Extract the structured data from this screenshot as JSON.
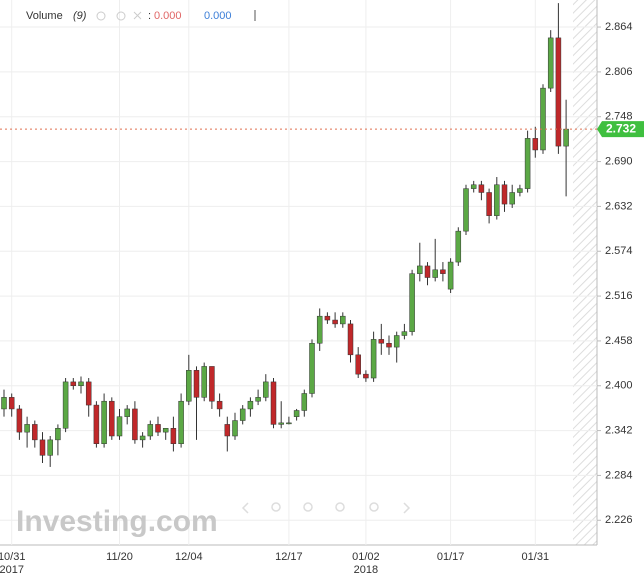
{
  "chart_data": {
    "type": "candlestick",
    "indicator": {
      "name": "Volume",
      "period": "(9)",
      "separator": ":",
      "value_1": {
        "value": 0,
        "label": "0.000"
      },
      "value_2": {
        "value": 0,
        "label": "0.000"
      }
    },
    "watermark": "Investing.com",
    "categories": [
      null,
      "10/31",
      null,
      null,
      null,
      null,
      null,
      null,
      null,
      null,
      null,
      null,
      null,
      null,
      null,
      "11/20",
      null,
      null,
      null,
      null,
      null,
      null,
      null,
      null,
      "12/04",
      null,
      null,
      null,
      null,
      null,
      null,
      null,
      null,
      null,
      null,
      null,
      null,
      "12/17",
      null,
      null,
      null,
      null,
      null,
      null,
      null,
      null,
      null,
      "01/02",
      null,
      null,
      null,
      null,
      null,
      null,
      null,
      null,
      null,
      null,
      "01/17",
      null,
      null,
      null,
      null,
      null,
      null,
      null,
      null,
      null,
      null,
      "01/31",
      null,
      null,
      null,
      null
    ],
    "category_sublabels": [
      null,
      "2017",
      null,
      null,
      null,
      null,
      null,
      null,
      null,
      null,
      null,
      null,
      null,
      null,
      null,
      null,
      null,
      null,
      null,
      null,
      null,
      null,
      null,
      null,
      null,
      null,
      null,
      null,
      null,
      null,
      null,
      null,
      null,
      null,
      null,
      null,
      null,
      null,
      null,
      null,
      null,
      null,
      null,
      null,
      null,
      null,
      null,
      "2018",
      null,
      null,
      null,
      null,
      null,
      null,
      null,
      null,
      null,
      null,
      null,
      null,
      null,
      null,
      null,
      null,
      null,
      null,
      null,
      null,
      null,
      null,
      null,
      null,
      null,
      null
    ],
    "open": [
      2.37,
      2.385,
      2.37,
      2.34,
      2.35,
      2.33,
      2.31,
      2.33,
      2.345,
      2.405,
      2.4,
      2.405,
      2.375,
      2.325,
      2.38,
      2.335,
      2.36,
      2.37,
      2.33,
      2.335,
      2.35,
      2.34,
      2.345,
      2.325,
      2.38,
      2.42,
      2.385,
      2.425,
      2.38,
      2.35,
      2.335,
      2.355,
      2.37,
      2.38,
      2.385,
      2.405,
      2.35,
      2.352,
      2.36,
      2.368,
      2.39,
      2.455,
      2.49,
      2.485,
      2.48,
      2.48,
      2.44,
      2.415,
      2.41,
      2.46,
      2.455,
      2.45,
      2.465,
      2.47,
      2.545,
      2.555,
      2.54,
      2.55,
      2.525,
      2.56,
      2.6,
      2.655,
      2.66,
      2.65,
      2.62,
      2.66,
      2.635,
      2.65,
      2.655,
      2.72,
      2.705,
      2.785,
      2.85,
      2.71
    ],
    "high": [
      2.395,
      2.39,
      2.375,
      2.36,
      2.355,
      2.34,
      2.335,
      2.35,
      2.41,
      2.41,
      2.412,
      2.41,
      2.38,
      2.39,
      2.385,
      2.37,
      2.375,
      2.38,
      2.34,
      2.355,
      2.36,
      2.345,
      2.36,
      2.39,
      2.44,
      2.425,
      2.43,
      2.425,
      2.39,
      2.36,
      2.365,
      2.375,
      2.385,
      2.395,
      2.415,
      2.41,
      2.38,
      2.36,
      2.37,
      2.395,
      2.46,
      2.5,
      2.495,
      2.495,
      2.495,
      2.485,
      2.45,
      2.42,
      2.47,
      2.48,
      2.465,
      2.47,
      2.48,
      2.55,
      2.585,
      2.56,
      2.59,
      2.56,
      2.565,
      2.605,
      2.66,
      2.665,
      2.665,
      2.655,
      2.67,
      2.665,
      2.66,
      2.66,
      2.73,
      2.735,
      2.79,
      2.86,
      2.895,
      2.77
    ],
    "low": [
      2.36,
      2.36,
      2.33,
      2.32,
      2.32,
      2.3,
      2.295,
      2.31,
      2.34,
      2.395,
      2.39,
      2.36,
      2.32,
      2.32,
      2.33,
      2.33,
      2.35,
      2.325,
      2.32,
      2.33,
      2.335,
      2.33,
      2.315,
      2.32,
      2.375,
      2.33,
      2.38,
      2.37,
      2.36,
      2.315,
      2.33,
      2.35,
      2.36,
      2.375,
      2.38,
      2.345,
      2.345,
      2.35,
      2.355,
      2.36,
      2.385,
      2.445,
      2.48,
      2.475,
      2.475,
      2.43,
      2.41,
      2.405,
      2.405,
      2.44,
      2.44,
      2.43,
      2.46,
      2.465,
      2.535,
      2.53,
      2.535,
      2.535,
      2.52,
      2.555,
      2.595,
      2.65,
      2.64,
      2.61,
      2.615,
      2.625,
      2.63,
      2.645,
      2.65,
      2.695,
      2.7,
      2.78,
      2.7,
      2.645
    ],
    "close": [
      2.385,
      2.37,
      2.34,
      2.35,
      2.33,
      2.31,
      2.33,
      2.345,
      2.405,
      2.4,
      2.405,
      2.375,
      2.325,
      2.38,
      2.335,
      2.36,
      2.37,
      2.33,
      2.335,
      2.35,
      2.34,
      2.345,
      2.325,
      2.38,
      2.42,
      2.385,
      2.425,
      2.38,
      2.37,
      2.335,
      2.355,
      2.37,
      2.38,
      2.385,
      2.405,
      2.35,
      2.352,
      2.352,
      2.368,
      2.39,
      2.455,
      2.49,
      2.485,
      2.48,
      2.49,
      2.44,
      2.415,
      2.41,
      2.46,
      2.455,
      2.45,
      2.465,
      2.47,
      2.545,
      2.555,
      2.54,
      2.55,
      2.545,
      2.56,
      2.6,
      2.655,
      2.66,
      2.65,
      2.62,
      2.66,
      2.635,
      2.65,
      2.655,
      2.72,
      2.705,
      2.785,
      2.85,
      2.71,
      2.732
    ],
    "up_color": "#5ba845",
    "down_color": "#c0282a",
    "last_price": {
      "value": 2.732,
      "label": "2.732"
    },
    "ylim": [
      2.194,
      2.899
    ],
    "yticks": [
      {
        "value": 2.226,
        "label": "2.226"
      },
      {
        "value": 2.284,
        "label": "2.284"
      },
      {
        "value": 2.342,
        "label": "2.342"
      },
      {
        "value": 2.4,
        "label": "2.400"
      },
      {
        "value": 2.458,
        "label": "2.458"
      },
      {
        "value": 2.516,
        "label": "2.516"
      },
      {
        "value": 2.574,
        "label": "2.574"
      },
      {
        "value": 2.632,
        "label": "2.632"
      },
      {
        "value": 2.69,
        "label": "2.690"
      },
      {
        "value": 2.748,
        "label": "2.748"
      },
      {
        "value": 2.806,
        "label": "2.806"
      },
      {
        "value": 2.864,
        "label": "2.864"
      }
    ],
    "grid": true
  }
}
